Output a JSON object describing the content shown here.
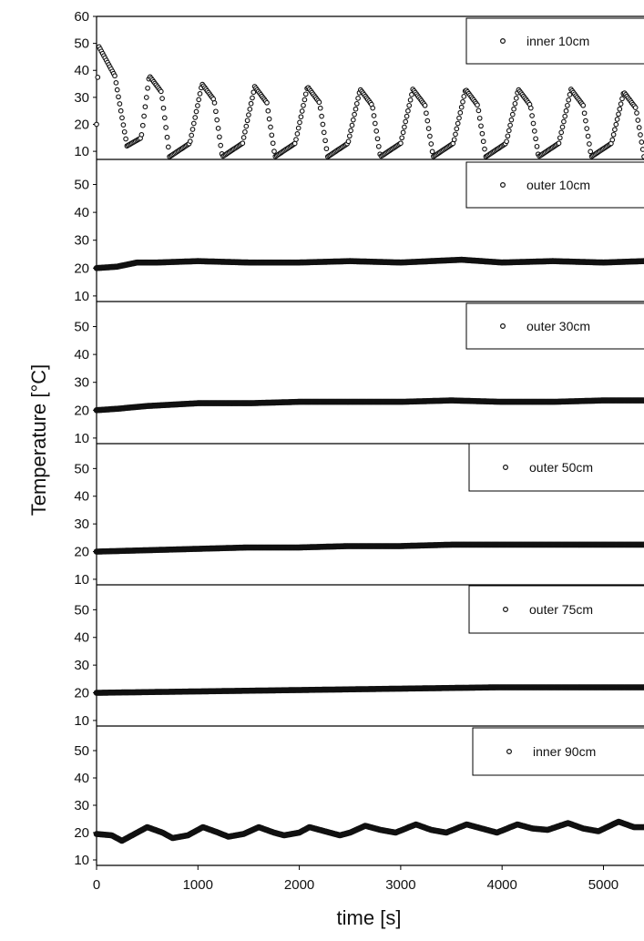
{
  "chart_data": {
    "type": "scatter",
    "xlabel": "time [s]",
    "ylabel": "Temperature [°C]",
    "xlim": [
      0,
      5400
    ],
    "xticks": [
      0,
      1000,
      2000,
      3000,
      4000,
      5000
    ],
    "x_tick_labels": [
      "0",
      "1000",
      "2000",
      "3000",
      "4000",
      "5000"
    ],
    "legend_position": "top-right",
    "colors": {
      "marker": "#111111",
      "axis": "#000000"
    },
    "panels": [
      {
        "name": "inner 10cm",
        "ylim": [
          7,
          60
        ],
        "yticks": [
          10,
          20,
          30,
          40,
          50,
          60
        ],
        "y_tick_labels": [
          "10",
          "20",
          "30",
          "40",
          "50",
          "60"
        ],
        "series": [
          {
            "name": "inner 10cm",
            "pattern": "periodic",
            "start": 20,
            "first_peak": 49,
            "first_peak_time": 20,
            "first_trough": 12,
            "first_trough_time": 300,
            "period": 520,
            "peaks": [
              38,
              35,
              34,
              34,
              33,
              33,
              33,
              33,
              33,
              32
            ],
            "trough": 8
          }
        ]
      },
      {
        "name": "outer 10cm",
        "ylim": [
          8,
          59
        ],
        "yticks": [
          10,
          20,
          30,
          40,
          50
        ],
        "y_tick_labels": [
          "10",
          "20",
          "30",
          "40",
          "50"
        ],
        "series": [
          {
            "name": "outer 10cm",
            "pattern": "flat",
            "x": [
              0,
              200,
              400,
              600,
              1000,
              1500,
              2000,
              2500,
              3000,
              3600,
              4000,
              4500,
              5000,
              5400
            ],
            "values": [
              20,
              20.5,
              22,
              22,
              22.5,
              22,
              22,
              22.5,
              22,
              23,
              22,
              22.5,
              22,
              22.5
            ]
          }
        ]
      },
      {
        "name": "outer 30cm",
        "ylim": [
          8,
          59
        ],
        "yticks": [
          10,
          20,
          30,
          40,
          50
        ],
        "y_tick_labels": [
          "10",
          "20",
          "30",
          "40",
          "50"
        ],
        "series": [
          {
            "name": "outer 30cm",
            "pattern": "flat",
            "x": [
              0,
              200,
              500,
              1000,
              1500,
              2000,
              2500,
              3000,
              3500,
              4000,
              4500,
              5000,
              5400
            ],
            "values": [
              20,
              20.5,
              21.5,
              22.5,
              22.5,
              23,
              23,
              23,
              23.5,
              23,
              23,
              23.5,
              23.5
            ]
          }
        ]
      },
      {
        "name": "outer 50cm",
        "ylim": [
          8,
          59
        ],
        "yticks": [
          10,
          20,
          30,
          40,
          50
        ],
        "y_tick_labels": [
          "10",
          "20",
          "30",
          "40",
          "50"
        ],
        "series": [
          {
            "name": "outer 50cm",
            "pattern": "flat",
            "x": [
              0,
              500,
              1000,
              1500,
              2000,
              2500,
              3000,
              3500,
              4000,
              4500,
              5000,
              5400
            ],
            "values": [
              20,
              20.5,
              21,
              21.5,
              21.5,
              22,
              22,
              22.5,
              22.5,
              22.5,
              22.5,
              22.5
            ]
          }
        ]
      },
      {
        "name": "outer 75cm",
        "ylim": [
          8,
          59
        ],
        "yticks": [
          10,
          20,
          30,
          40,
          50
        ],
        "y_tick_labels": [
          "10",
          "20",
          "30",
          "40",
          "50"
        ],
        "series": [
          {
            "name": "outer 75cm",
            "pattern": "flat",
            "x": [
              0,
              1000,
              2000,
              3000,
              4000,
              5000,
              5400
            ],
            "values": [
              20,
              20.5,
              21,
              21.5,
              22,
              22,
              22
            ]
          }
        ]
      },
      {
        "name": "inner 90cm",
        "ylim": [
          8,
          59
        ],
        "yticks": [
          10,
          20,
          30,
          40,
          50
        ],
        "y_tick_labels": [
          "10",
          "20",
          "30",
          "40",
          "50"
        ],
        "series": [
          {
            "name": "inner 90cm",
            "pattern": "oscillating",
            "x": [
              0,
              150,
              250,
              350,
              500,
              650,
              750,
              900,
              1050,
              1200,
              1300,
              1450,
              1600,
              1750,
              1850,
              2000,
              2100,
              2250,
              2400,
              2500,
              2650,
              2800,
              2950,
              3150,
              3300,
              3450,
              3650,
              3800,
              3950,
              4150,
              4300,
              4450,
              4650,
              4800,
              4950,
              5150,
              5300,
              5400
            ],
            "values": [
              19.5,
              19,
              17,
              19,
              22,
              20,
              18,
              19,
              22,
              20,
              18.5,
              19.5,
              22,
              20,
              19,
              20,
              22,
              20.5,
              19,
              20,
              22.5,
              21,
              20,
              23,
              21,
              20,
              23,
              21.5,
              20,
              23,
              21.5,
              21,
              23.5,
              21.5,
              20.5,
              24,
              22,
              22
            ]
          }
        ]
      }
    ]
  }
}
